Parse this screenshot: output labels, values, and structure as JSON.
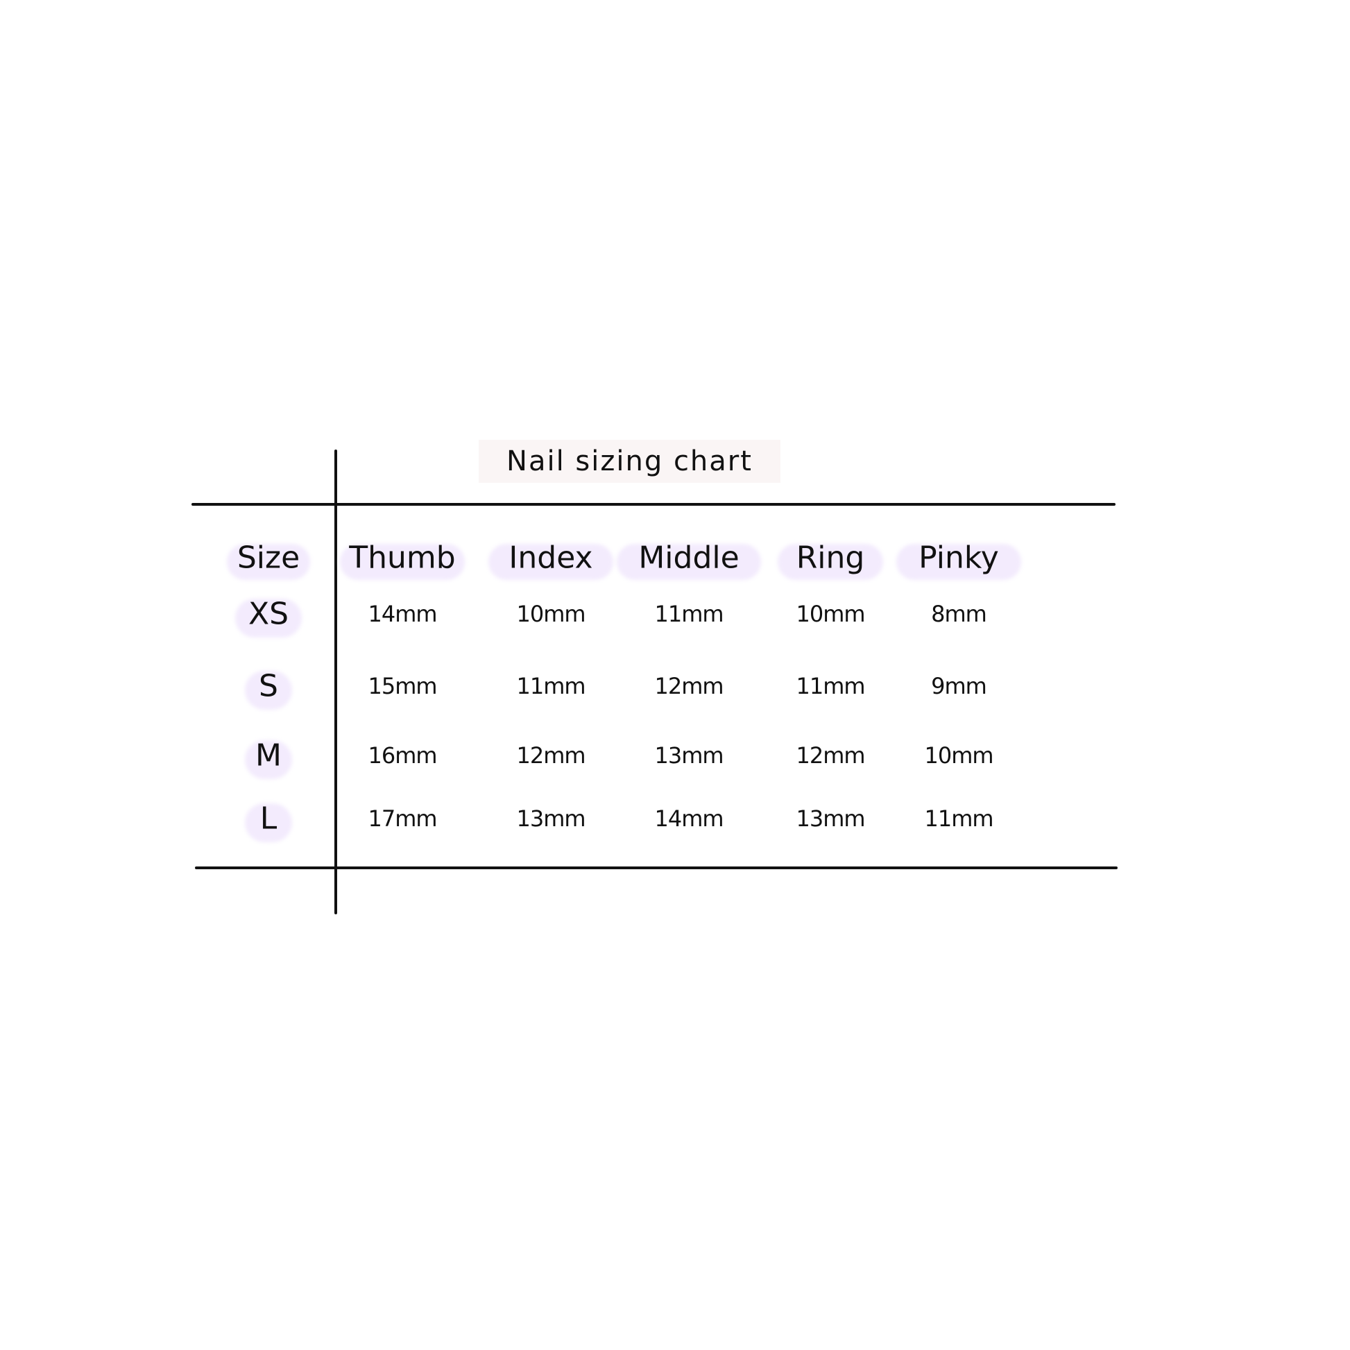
{
  "title": "Nail sizing chart",
  "highlight_color": "#f3ebfd",
  "table": {
    "corner_header": "Size",
    "columns": [
      "Thumb",
      "Index",
      "Middle",
      "Ring",
      "Pinky"
    ],
    "rows": [
      {
        "size": "XS",
        "values": [
          "14mm",
          "10mm",
          "11mm",
          "10mm",
          "8mm"
        ]
      },
      {
        "size": "S",
        "values": [
          "15mm",
          "11mm",
          "12mm",
          "11mm",
          "9mm"
        ]
      },
      {
        "size": "M",
        "values": [
          "16mm",
          "12mm",
          "13mm",
          "12mm",
          "10mm"
        ]
      },
      {
        "size": "L",
        "values": [
          "17mm",
          "13mm",
          "14mm",
          "13mm",
          "11mm"
        ]
      }
    ]
  }
}
